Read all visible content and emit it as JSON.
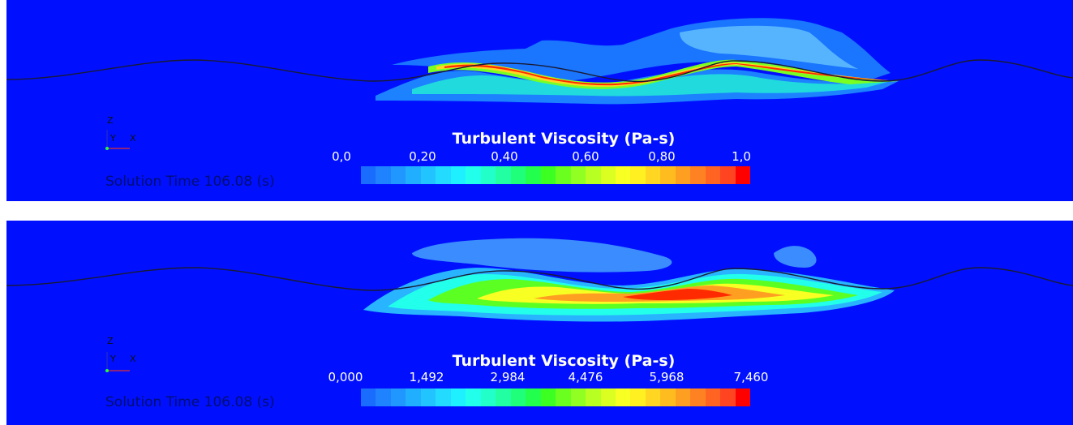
{
  "colors": {
    "background": "#0010ff",
    "wall_line": "#1a1a33",
    "colormap": [
      "#1a6cff",
      "#1f82ff",
      "#1f97ff",
      "#20aeff",
      "#22c4ff",
      "#22dbff",
      "#1ff0ff",
      "#22ffea",
      "#22ffc8",
      "#22ffa2",
      "#1fff7a",
      "#22ff4c",
      "#3cff22",
      "#6aff1f",
      "#92ff22",
      "#b8ff22",
      "#dcff22",
      "#f8ff22",
      "#fff022",
      "#ffd622",
      "#ffbc1f",
      "#ff9f22",
      "#ff8222",
      "#ff6422",
      "#ff4422",
      "#ff0000"
    ]
  },
  "panels": [
    {
      "id": "top",
      "legend_title": "Turbulent Viscosity (Pa-s)",
      "tick_labels": [
        "0,0",
        "0,20",
        "0,40",
        "0,60",
        "0,80",
        "1,0"
      ],
      "range": [
        0,
        1
      ],
      "solution_time_label": "Solution Time 106.08 (s)",
      "axis_labels": {
        "z": "Z",
        "y": "Y",
        "x": "X"
      }
    },
    {
      "id": "bottom",
      "legend_title": "Turbulent Viscosity (Pa-s)",
      "tick_labels": [
        "0,000",
        "1,492",
        "2,984",
        "4,476",
        "5,968",
        "7,460"
      ],
      "range": [
        0,
        7.46
      ],
      "solution_time_label": "Solution Time 106.08 (s)",
      "axis_labels": {
        "z": "Z",
        "y": "Y",
        "x": "X"
      }
    }
  ]
}
